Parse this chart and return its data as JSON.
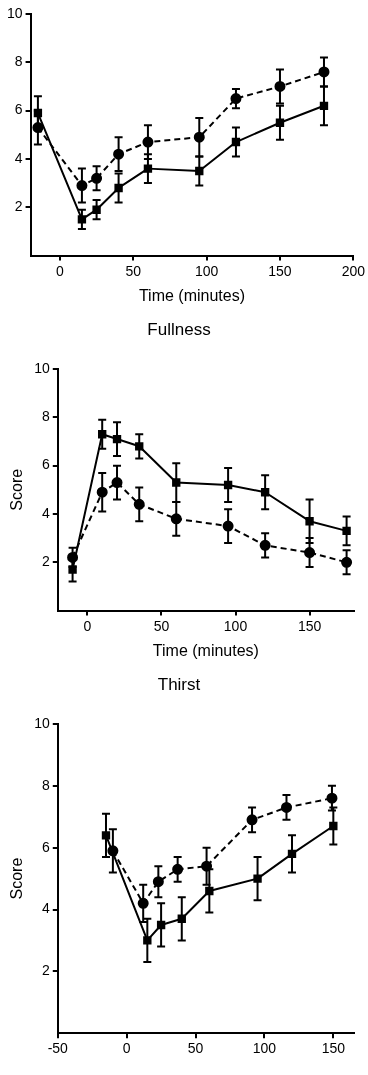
{
  "chart_data": [
    {
      "type": "line",
      "title": "Fullness",
      "xlabel": "Time (minutes)",
      "x": [
        -15,
        15,
        25,
        40,
        60,
        95,
        120,
        150,
        180
      ],
      "xlim": [
        -20,
        200
      ],
      "xticks": [
        0,
        50,
        100,
        150,
        200
      ],
      "ylim": [
        0,
        10
      ],
      "yticks": [
        2,
        4,
        6,
        8,
        10
      ],
      "grid": false,
      "legend": false,
      "series": [
        {
          "color": "#000000",
          "marker": "square",
          "line_style": "solid",
          "values": [
            5.9,
            1.5,
            1.9,
            2.8,
            3.6,
            3.5,
            4.7,
            5.5,
            6.2
          ],
          "errors": [
            0.7,
            0.4,
            0.4,
            0.6,
            0.6,
            0.6,
            0.6,
            0.7,
            0.8
          ]
        },
        {
          "color": "#000000",
          "marker": "circle",
          "line_style": "dashed",
          "values": [
            5.3,
            2.9,
            3.2,
            4.2,
            4.7,
            4.9,
            6.5,
            7.0,
            7.6
          ],
          "errors": [
            0.7,
            0.7,
            0.5,
            0.7,
            0.7,
            0.8,
            0.4,
            0.7,
            0.6
          ]
        }
      ]
    },
    {
      "type": "line",
      "title": "Thirst",
      "xlabel": "Time (minutes)",
      "ylabel": "Score",
      "x": [
        -10,
        10,
        20,
        35,
        60,
        95,
        120,
        150,
        175
      ],
      "xlim": [
        -20,
        180
      ],
      "xticks": [
        0,
        50,
        100,
        150
      ],
      "ylim": [
        0,
        10
      ],
      "yticks": [
        2,
        4,
        6,
        8,
        10
      ],
      "grid": false,
      "legend": false,
      "series": [
        {
          "color": "#000000",
          "marker": "square",
          "line_style": "solid",
          "values": [
            1.7,
            7.3,
            7.1,
            6.8,
            5.3,
            5.2,
            4.9,
            3.7,
            3.3
          ],
          "errors": [
            0.5,
            0.6,
            0.7,
            0.5,
            0.8,
            0.7,
            0.7,
            0.9,
            0.6
          ]
        },
        {
          "color": "#000000",
          "marker": "circle",
          "line_style": "dashed",
          "values": [
            2.2,
            4.9,
            5.3,
            4.4,
            3.8,
            3.5,
            2.7,
            2.4,
            2.0
          ],
          "errors": [
            0.4,
            0.8,
            0.7,
            0.7,
            0.7,
            0.7,
            0.5,
            0.6,
            0.5
          ]
        }
      ]
    },
    {
      "type": "line",
      "ylabel": "Score",
      "x": [
        -15,
        15,
        25,
        40,
        60,
        95,
        120,
        150
      ],
      "xlim": [
        -50,
        165
      ],
      "xticks": [
        -50,
        0,
        50,
        100,
        150
      ],
      "ylim": [
        0,
        10
      ],
      "yticks": [
        2,
        4,
        6,
        8,
        10
      ],
      "grid": false,
      "legend": false,
      "series": [
        {
          "color": "#000000",
          "marker": "square",
          "line_style": "solid",
          "values": [
            6.4,
            3.0,
            3.5,
            3.7,
            4.6,
            5.0,
            5.8,
            6.7
          ],
          "errors": [
            0.7,
            0.7,
            0.7,
            0.7,
            0.7,
            0.7,
            0.6,
            0.6
          ]
        },
        {
          "color": "#000000",
          "marker": "circle",
          "line_style": "dashed",
          "x": [
            -10,
            12,
            23,
            37,
            58,
            91,
            116,
            149
          ],
          "values": [
            5.9,
            4.2,
            4.9,
            5.3,
            5.4,
            6.9,
            7.3,
            7.6
          ],
          "errors": [
            0.7,
            0.6,
            0.5,
            0.4,
            0.6,
            0.4,
            0.4,
            0.4
          ]
        }
      ]
    }
  ]
}
